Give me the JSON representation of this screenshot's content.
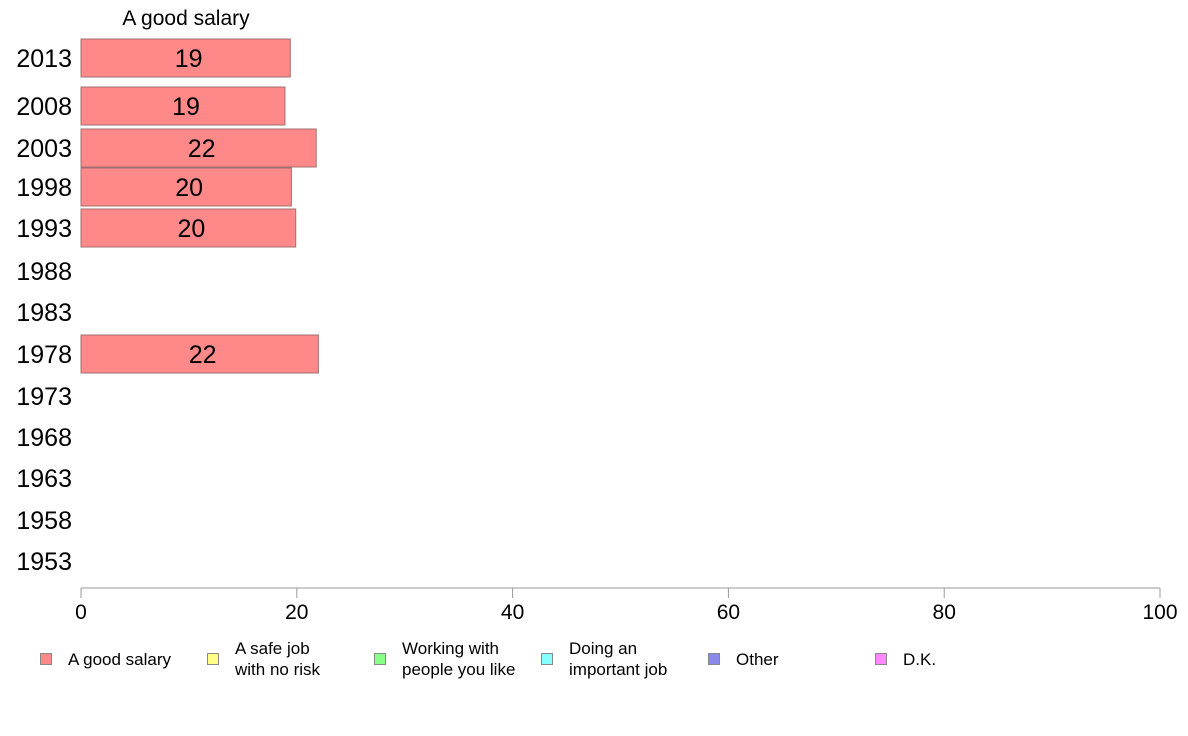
{
  "chart_data": {
    "type": "bar",
    "orientation": "horizontal",
    "title": "A good salary",
    "categories": [
      "2013",
      "2008",
      "2003",
      "1998",
      "1993",
      "1988",
      "1983",
      "1978",
      "1973",
      "1968",
      "1963",
      "1958",
      "1953"
    ],
    "series": [
      {
        "name": "A good salary",
        "values": [
          19.4,
          18.9,
          21.8,
          19.5,
          19.9,
          null,
          null,
          22.0,
          null,
          null,
          null,
          null,
          null
        ]
      }
    ],
    "data_labels": [
      "19",
      "19",
      "22",
      "20",
      "20",
      "",
      "",
      "22",
      "",
      "",
      "",
      "",
      ""
    ],
    "xlim": [
      0,
      100
    ],
    "xticks": [
      0,
      20,
      40,
      60,
      80,
      100
    ],
    "grid": false,
    "legend_position": "bottom",
    "bar_color": "#ff8888",
    "bar_stroke": "#a07070"
  },
  "legend": [
    {
      "label": "A good salary",
      "color": "#ff8888"
    },
    {
      "label": "A safe job\nwith no risk",
      "color": "#ffff88"
    },
    {
      "label": "Working with\npeople you like",
      "color": "#88ff88"
    },
    {
      "label": "Doing an\nimportant job",
      "color": "#88ffff"
    },
    {
      "label": "Other",
      "color": "#8888ee"
    },
    {
      "label": "D.K.",
      "color": "#ff88ff"
    }
  ]
}
